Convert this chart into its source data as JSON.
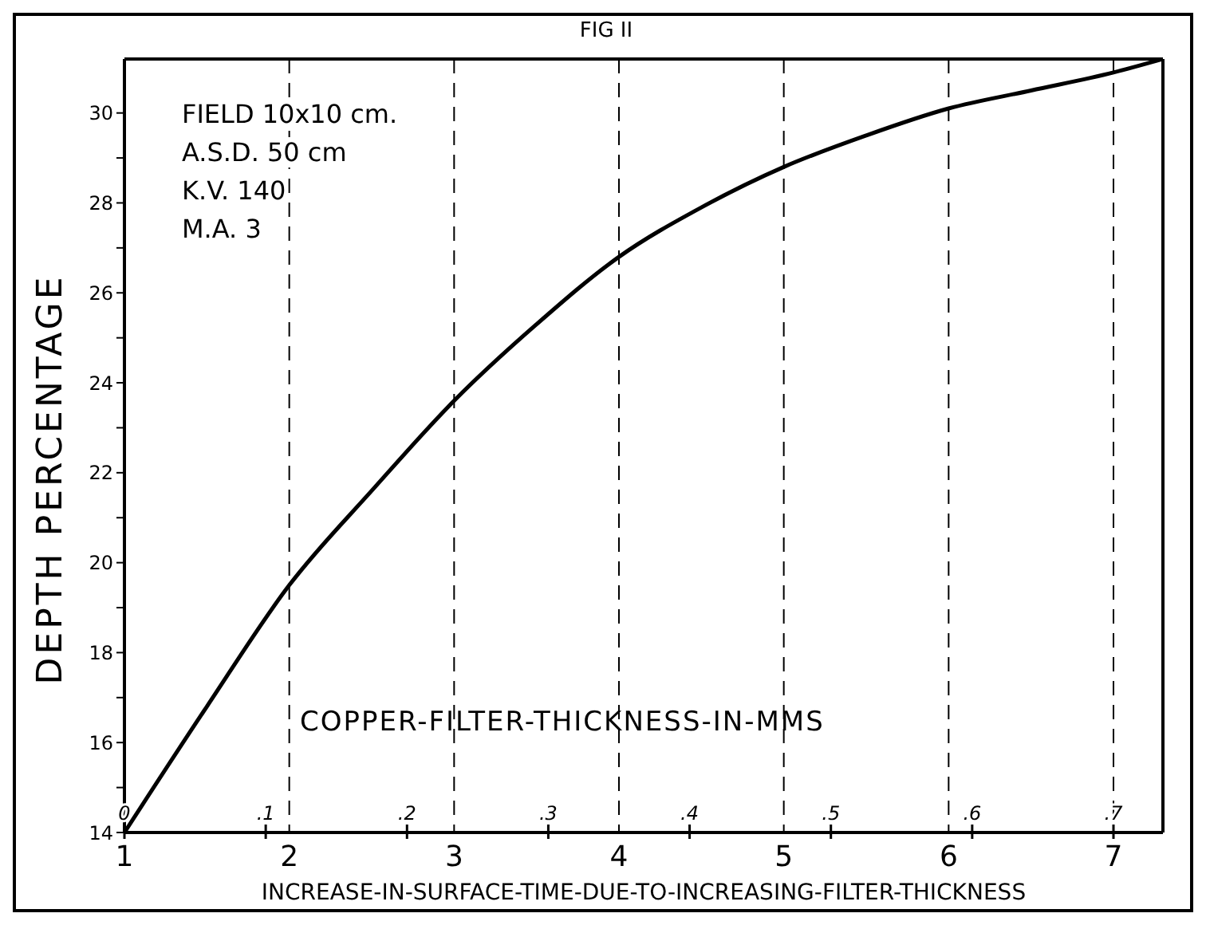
{
  "chart_data": {
    "type": "line",
    "title": "FIG II",
    "xlabel": "INCREASE-IN-SURFACE-TIME-DUE-TO-INCREASING-FILTER-THICKNESS",
    "x2label": "COPPER-FILTER-THICKNESS-IN-MMS",
    "ylabel": "DEPTH PERCENTAGE",
    "annotations": [
      "FIELD 10x10 cm.",
      "A.S.D. 50 cm",
      "K.V. 140",
      "M.A. 3"
    ],
    "x": [
      1,
      1.5,
      2,
      2.5,
      3,
      3.5,
      4,
      4.5,
      5,
      5.5,
      6,
      6.5,
      7,
      7.3
    ],
    "series": [
      {
        "color": "#000000",
        "values": [
          14,
          16.8,
          19.5,
          21.6,
          23.6,
          25.3,
          26.8,
          27.9,
          28.8,
          29.5,
          30.1,
          30.5,
          30.9,
          31.2
        ]
      }
    ],
    "xlim": [
      1,
      7.3
    ],
    "xticks": [
      1,
      2,
      3,
      4,
      5,
      6,
      7
    ],
    "x2lim": [
      0,
      0.735
    ],
    "x2ticks": [
      0,
      {
        "value": 0.1,
        "label": ".1"
      },
      {
        "value": 0.2,
        "label": ".2"
      },
      {
        "value": 0.3,
        "label": ".3"
      },
      {
        "value": 0.4,
        "label": ".4"
      },
      {
        "value": 0.5,
        "label": ".5"
      },
      {
        "value": 0.6,
        "label": ".6"
      },
      {
        "value": 0.7,
        "label": ".7"
      }
    ],
    "ylim": [
      14,
      31.2
    ],
    "yticks": [
      14,
      {
        "value": 15,
        "label": null
      },
      16,
      {
        "value": 17,
        "label": null
      },
      18,
      {
        "value": 19,
        "label": null
      },
      20,
      {
        "value": 21,
        "label": null
      },
      22,
      {
        "value": 23,
        "label": null
      },
      24,
      {
        "value": 25,
        "label": null
      },
      26,
      {
        "value": 27,
        "label": null
      },
      28,
      {
        "value": 29,
        "label": null
      },
      30
    ],
    "grid": "x",
    "marker": "none",
    "line_style": "solid"
  }
}
